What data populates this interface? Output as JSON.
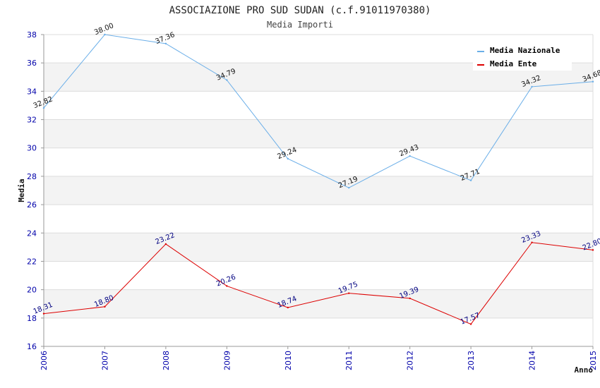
{
  "chart_data": {
    "type": "line",
    "title": "ASSOCIAZIONE PRO SUD SUDAN (c.f.91011970380)",
    "subtitle": "Media Importi",
    "xlabel": "Anno",
    "ylabel": "Media",
    "x": [
      "2006",
      "2007",
      "2008",
      "2009",
      "2010",
      "2011",
      "2012",
      "2013",
      "2014",
      "2015"
    ],
    "ylim": [
      16,
      38
    ],
    "yticks": [
      "16",
      "18",
      "20",
      "22",
      "24",
      "26",
      "28",
      "30",
      "32",
      "34",
      "36",
      "38"
    ],
    "grid": "horizontal alternating bands",
    "legend_position": "top-right",
    "series": [
      {
        "name": "Media Nazionale",
        "color": "#6aaee8",
        "values": [
          32.82,
          38.0,
          37.36,
          34.79,
          29.24,
          27.19,
          29.43,
          27.71,
          34.32,
          34.68
        ],
        "labels": [
          "32.82",
          "38.00",
          "37.36",
          "34.79",
          "29.24",
          "27.19",
          "29.43",
          "27.71",
          "34.32",
          "34.68"
        ]
      },
      {
        "name": "Media Ente",
        "color": "#dd0000",
        "values": [
          18.31,
          18.8,
          23.22,
          20.26,
          18.74,
          19.75,
          19.39,
          17.57,
          23.33,
          22.8
        ],
        "labels": [
          "18.31",
          "18.80",
          "23.22",
          "20.26",
          "18.74",
          "19.75",
          "19.39",
          "17.57",
          "23.33",
          "22.80"
        ]
      }
    ]
  }
}
